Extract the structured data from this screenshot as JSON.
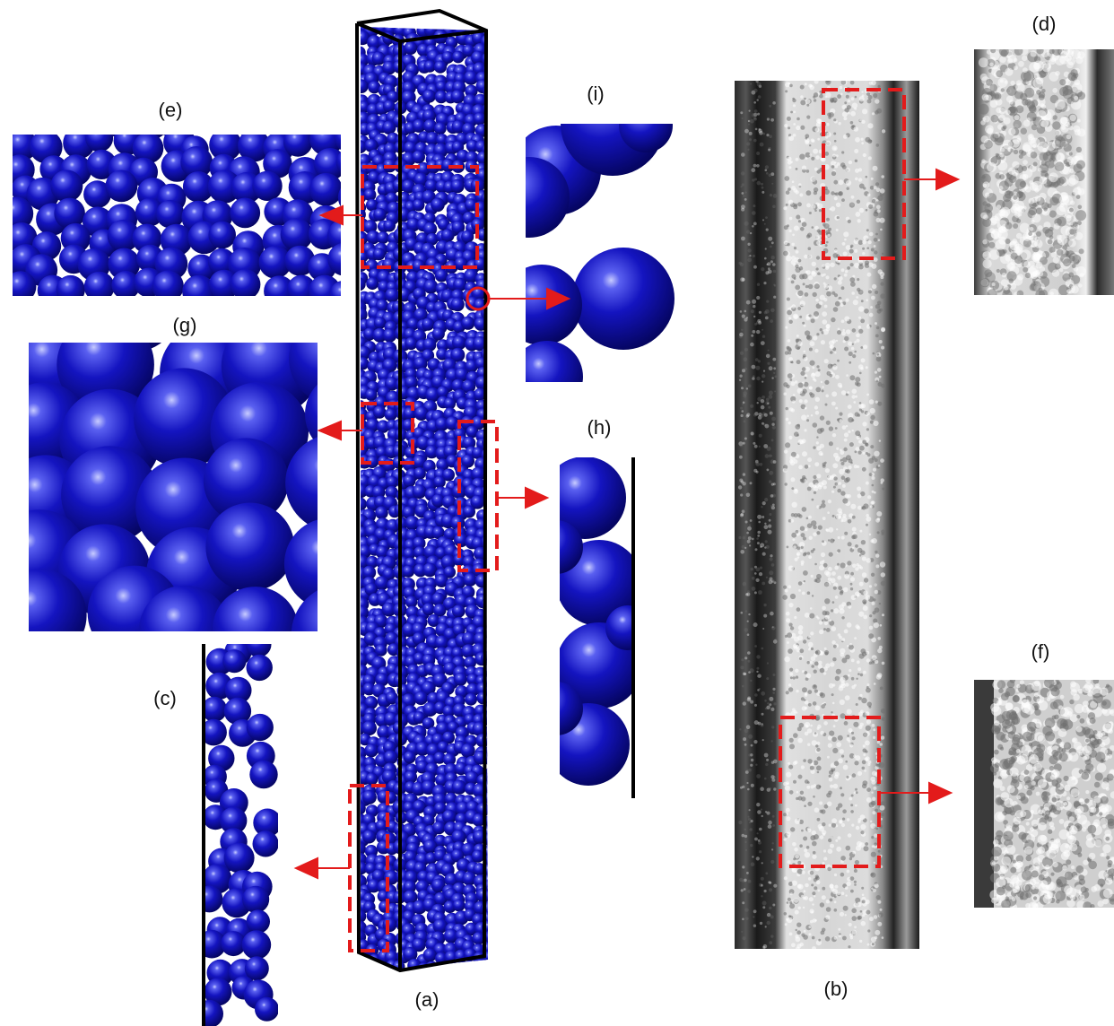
{
  "labels": {
    "a": "(a)",
    "b": "(b)",
    "c": "(c)",
    "d": "(d)",
    "e": "(e)",
    "f": "(f)",
    "g": "(g)",
    "h": "(h)",
    "i": "(i)"
  },
  "colors": {
    "sphere": "#1010b0",
    "sphere_highlight": "#aab0ff",
    "highlight_box": "#e31b1b",
    "arrow": "#e31b1b",
    "frame": "#000000",
    "ct_dark": "#1a1a1a",
    "ct_light": "#e8e8e8"
  },
  "icons": {
    "arrow": "right-arrow-icon"
  }
}
